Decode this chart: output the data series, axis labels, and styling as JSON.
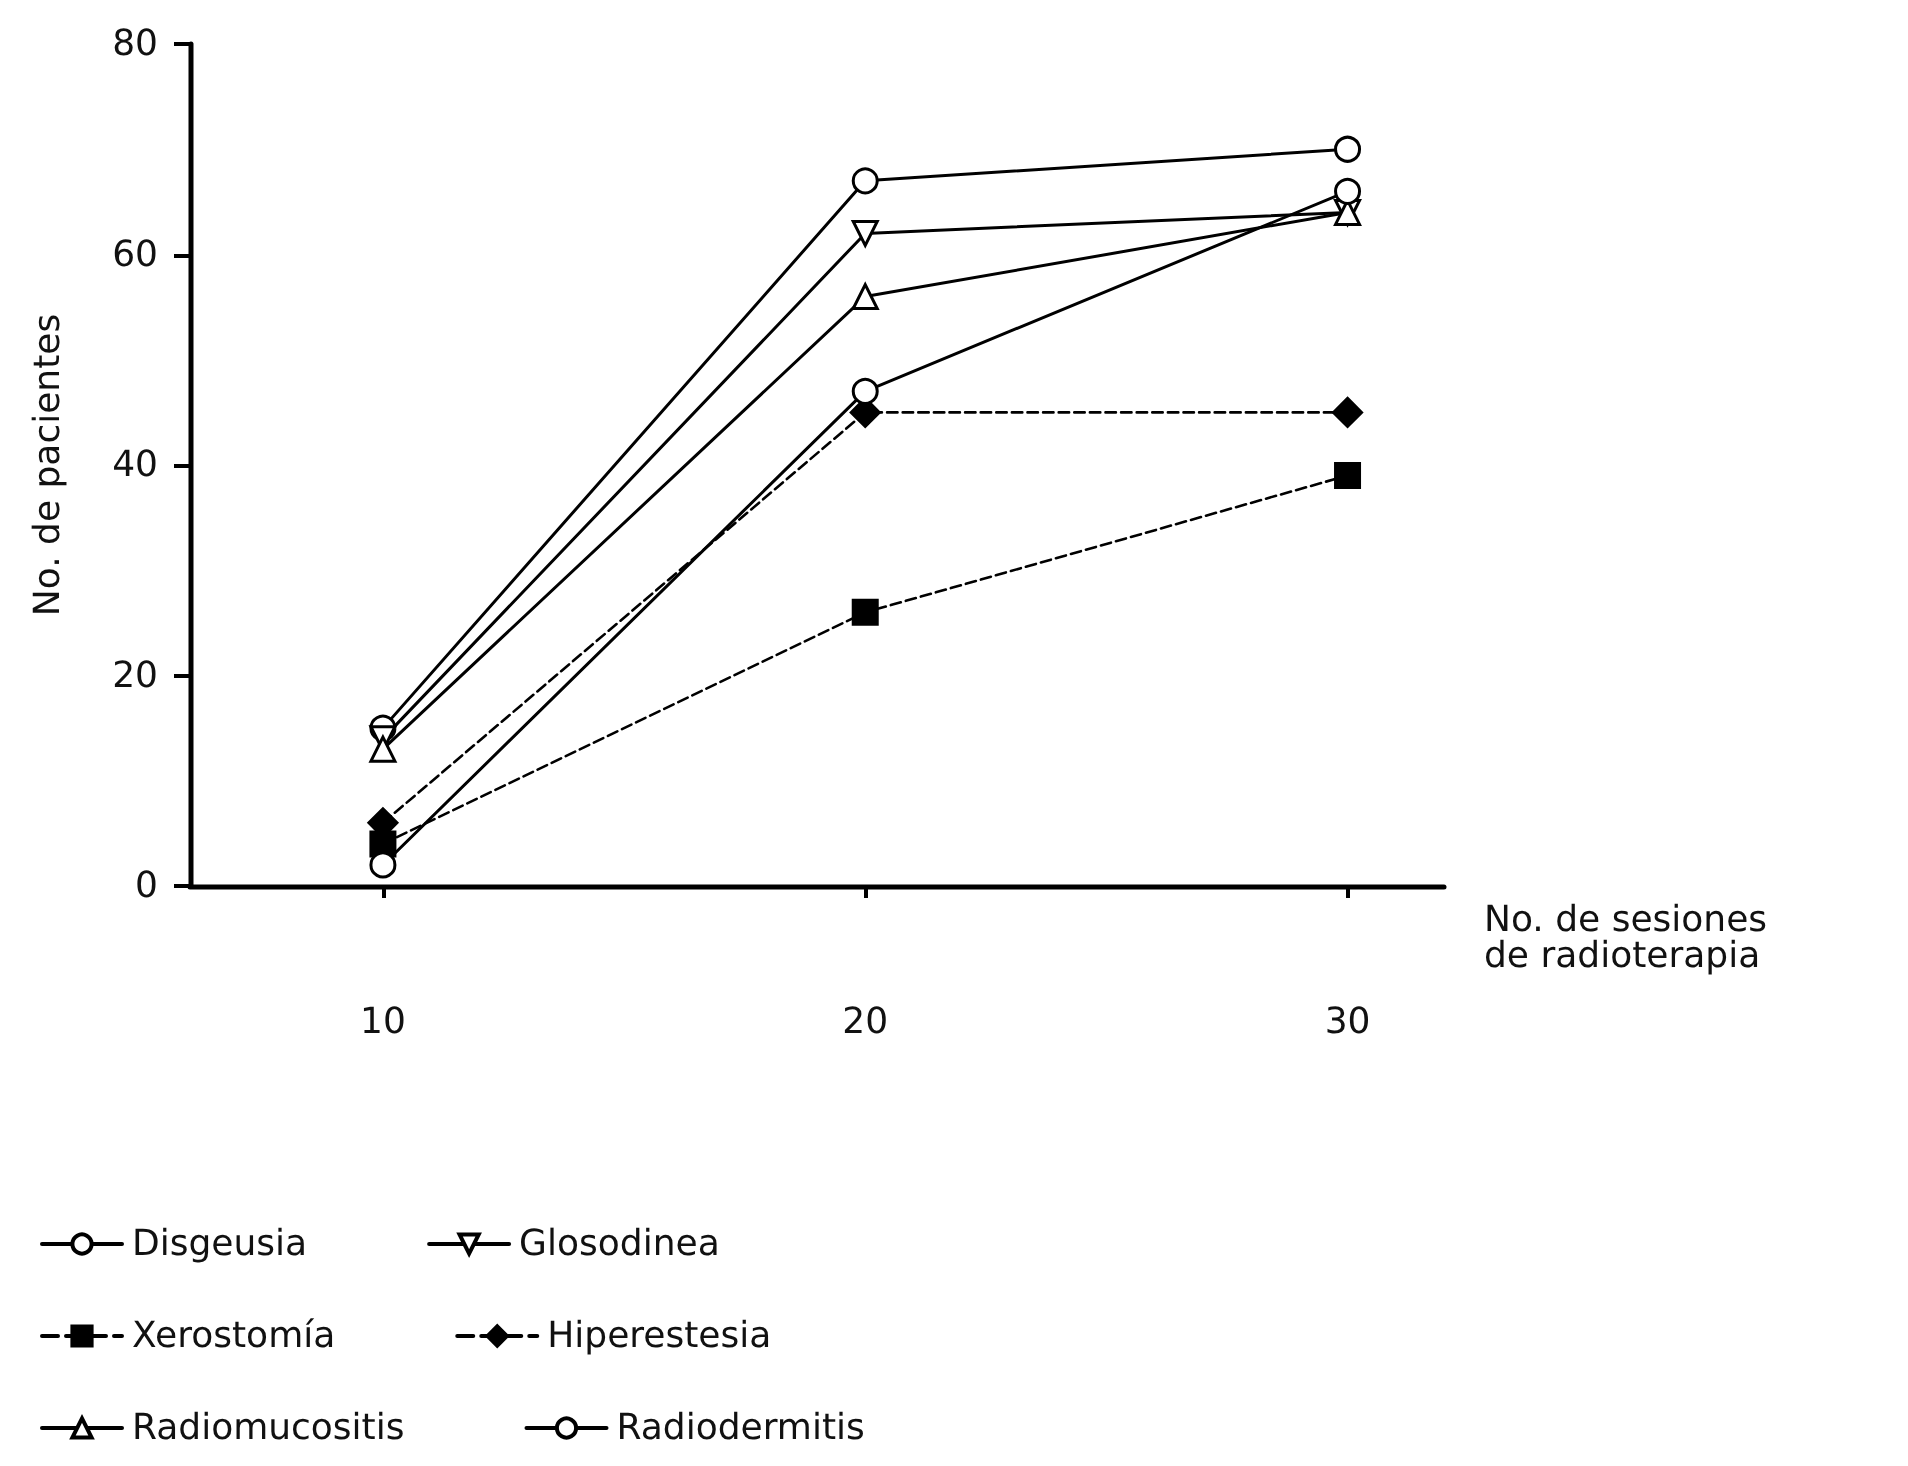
{
  "chart_data": {
    "type": "line",
    "xlabel": "No. de sesiones\nde radioterapia",
    "ylabel": "No. de pacientes",
    "x": [
      10,
      20,
      30
    ],
    "xlim": [
      6,
      32
    ],
    "xticks": [
      10,
      20,
      30
    ],
    "ylim": [
      0,
      80
    ],
    "yticks": [
      0,
      20,
      40,
      60,
      80
    ],
    "grid": false,
    "legend": "bottom left",
    "series": [
      {
        "name": "Disgeusia",
        "color": "#000000",
        "marker": "circle-open",
        "line_style": "solid",
        "values": [
          15,
          67,
          70
        ]
      },
      {
        "name": "Glosodinea",
        "color": "#000000",
        "marker": "triangle-down-open",
        "line_style": "solid",
        "values": [
          14,
          62,
          64
        ]
      },
      {
        "name": "Xerostomía",
        "color": "#000000",
        "marker": "square",
        "line_style": "dashed",
        "values": [
          4,
          26,
          39
        ]
      },
      {
        "name": "Hiperestesia",
        "color": "#000000",
        "marker": "diamond",
        "line_style": "dashed",
        "values": [
          6,
          45,
          45
        ]
      },
      {
        "name": "Radiomucositis",
        "color": "#000000",
        "marker": "triangle-open",
        "line_style": "solid",
        "values": [
          13,
          56,
          64
        ]
      },
      {
        "name": "Radiodermitis",
        "color": "#000000",
        "marker": "circle-open",
        "line_style": "solid",
        "values": [
          2,
          47,
          66
        ]
      }
    ]
  }
}
